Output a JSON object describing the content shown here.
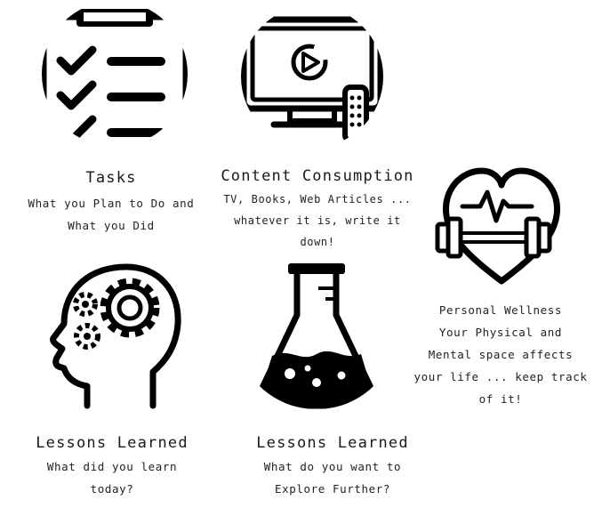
{
  "cards": [
    {
      "title": "Tasks",
      "description": "What you Plan to Do and\nWhat you Did",
      "icon": "checklist-icon"
    },
    {
      "title": "Content Consumption",
      "description": "TV, Books, Web Articles ...\nwhatever it is, write it down!",
      "icon": "tv-remote-icon"
    },
    {
      "title": "Personal Wellness",
      "description": "Your Physical and\nMental space affects\nyour life ... keep track\nof it!",
      "icon": "heart-dumbbell-icon"
    },
    {
      "title": "Lessons Learned",
      "description": "What did you learn\ntoday?",
      "icon": "head-gears-icon"
    },
    {
      "title": "Lessons Learned",
      "description": "What do you want to\nExplore Further?",
      "icon": "flask-icon"
    }
  ]
}
